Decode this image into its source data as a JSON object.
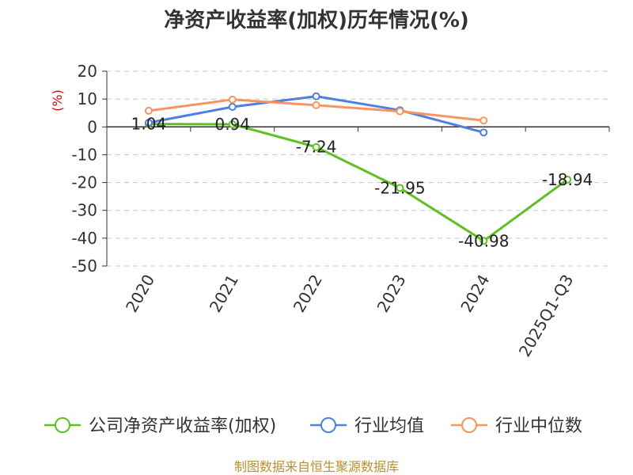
{
  "chart_data": {
    "type": "line",
    "title": "净资产收益率(加权)历年情况(%)",
    "ylabel": "(%)",
    "categories": [
      "2020",
      "2021",
      "2022",
      "2023",
      "2024",
      "2025Q1-Q3"
    ],
    "ylim": [
      -50,
      20
    ],
    "yticks": [
      20,
      10,
      0,
      -10,
      -20,
      -30,
      -40,
      -50
    ],
    "grid": true,
    "legend_position": "bottom",
    "series": [
      {
        "name": "公司净资产收益率(加权)",
        "color": "#5ec11f",
        "values": [
          1.04,
          0.94,
          -7.24,
          -21.95,
          -40.98,
          -18.94
        ],
        "labels": [
          "1.04",
          "0.94",
          "-7.24",
          "-21.95",
          "-40.98",
          "-18.94"
        ]
      },
      {
        "name": "行业均值",
        "color": "#4f7fe0",
        "values": [
          1.5,
          7.2,
          11.0,
          6.0,
          -2.0,
          null
        ]
      },
      {
        "name": "行业中位数",
        "color": "#f79461",
        "values": [
          5.8,
          9.8,
          7.8,
          5.6,
          2.3,
          null
        ]
      }
    ]
  },
  "source": "制图数据来自恒生聚源数据库"
}
